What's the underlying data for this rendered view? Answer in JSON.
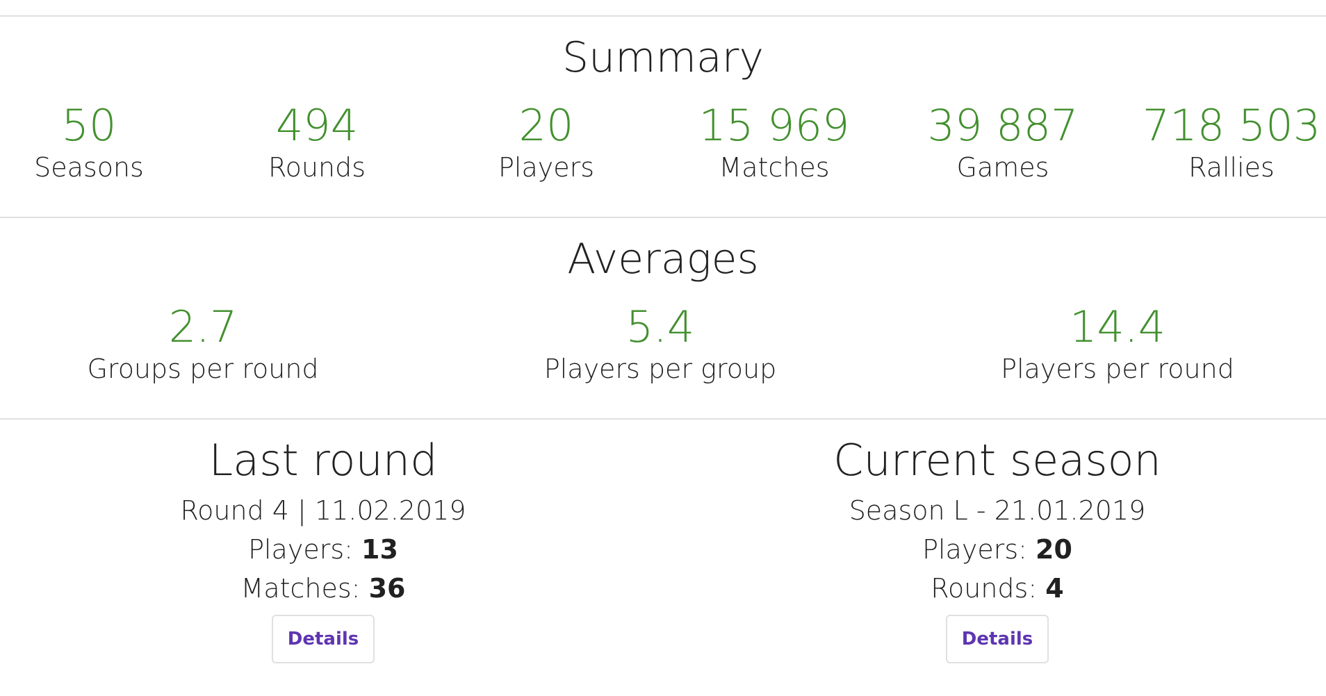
{
  "summary": {
    "title": "Summary",
    "stats": [
      {
        "value": "50",
        "label": "Seasons"
      },
      {
        "value": "494",
        "label": "Rounds"
      },
      {
        "value": "20",
        "label": "Players"
      },
      {
        "value": "15 969",
        "label": "Matches"
      },
      {
        "value": "39 887",
        "label": "Games"
      },
      {
        "value": "718 503",
        "label": "Rallies"
      }
    ]
  },
  "averages": {
    "title": "Averages",
    "stats": [
      {
        "value": "2.7",
        "label": "Groups per round"
      },
      {
        "value": "5.4",
        "label": "Players per group"
      },
      {
        "value": "14.4",
        "label": "Players per round"
      }
    ]
  },
  "last_round": {
    "title": "Last round",
    "subtitle": "Round 4 | 11.02.2019",
    "players_label": "Players:",
    "players_value": "13",
    "matches_label": "Matches:",
    "matches_value": "36",
    "details_label": "Details"
  },
  "current_season": {
    "title": "Current season",
    "subtitle": "Season L - 21.01.2019",
    "players_label": "Players:",
    "players_value": "20",
    "rounds_label": "Rounds:",
    "rounds_value": "4",
    "details_label": "Details"
  },
  "colors": {
    "stat_value": "#43902f",
    "text": "#212121",
    "divider": "#e0e0e0",
    "button_text": "#5e35b1"
  }
}
